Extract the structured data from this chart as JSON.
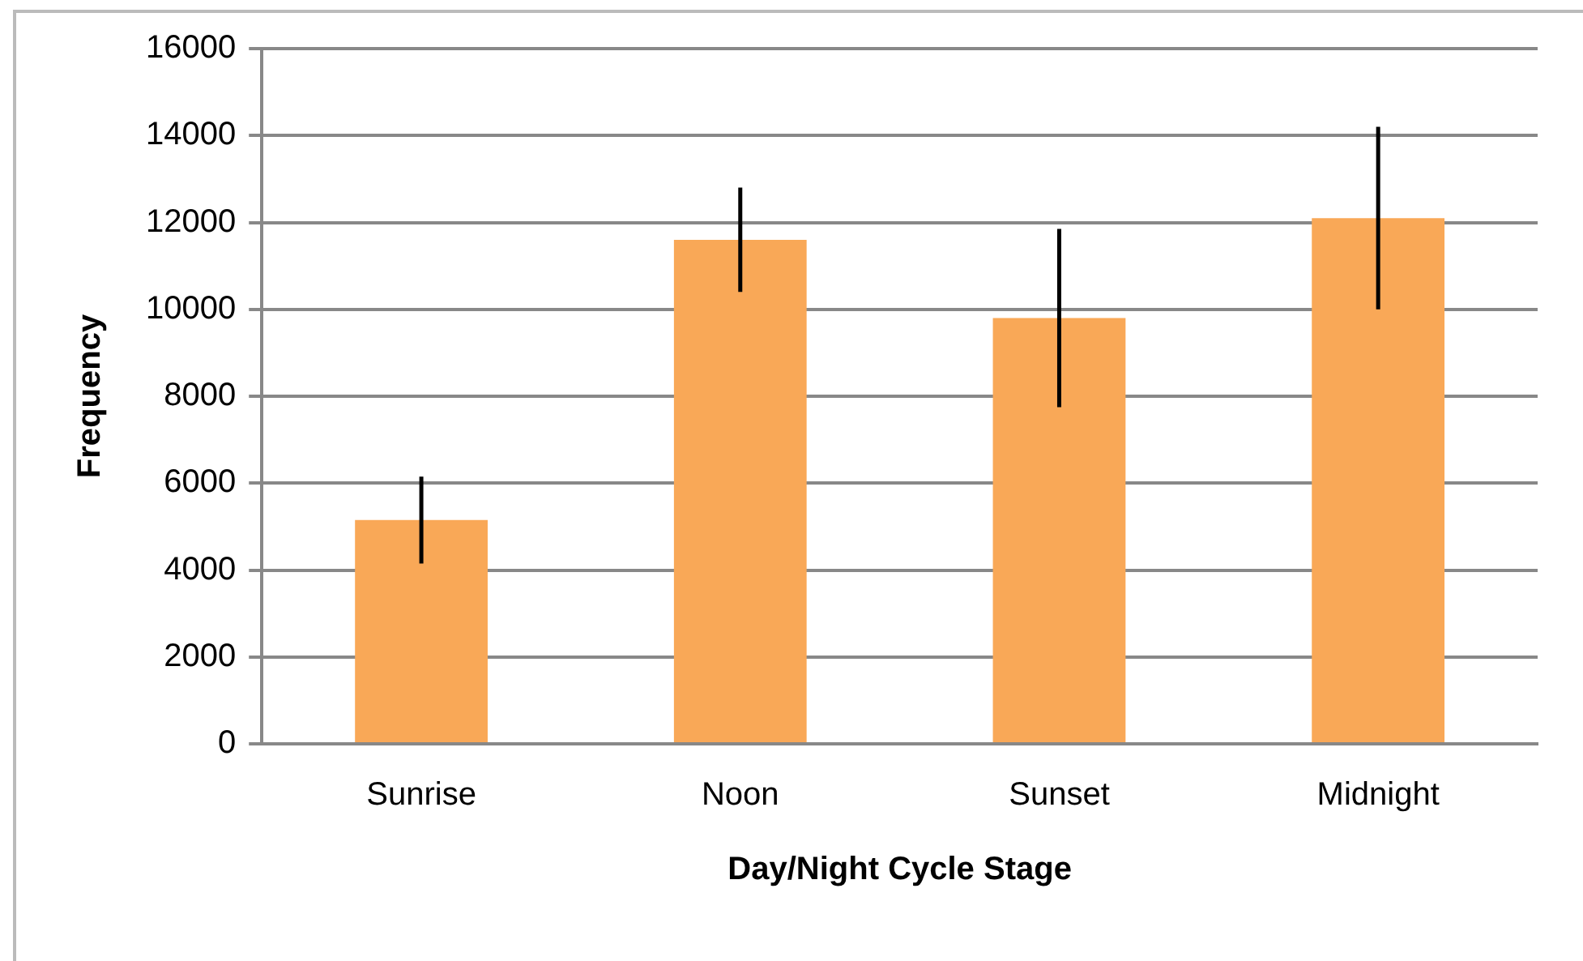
{
  "chart_data": {
    "type": "bar",
    "xlabel": "Day/Night Cycle Stage",
    "ylabel": "Frequency",
    "categories": [
      "Sunrise",
      "Noon",
      "Sunset",
      "Midnight"
    ],
    "values": [
      5150,
      11600,
      9800,
      12100
    ],
    "errors": [
      1000,
      1200,
      2050,
      2100
    ],
    "color": "#f9a857",
    "ylim": [
      0,
      16000
    ],
    "yticks": [
      0,
      2000,
      4000,
      6000,
      8000,
      10000,
      12000,
      14000,
      16000
    ],
    "grid": "y",
    "legend": false
  }
}
